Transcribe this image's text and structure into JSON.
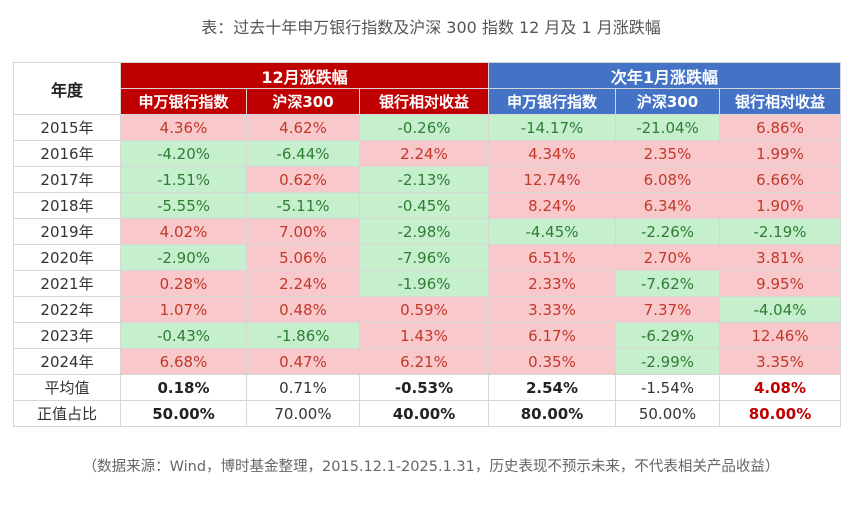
{
  "title": "表：过去十年申万银行指数及沪深 300 指数 12 月及 1 月涨跌幅",
  "table": {
    "corner": "年度",
    "groups": [
      "12月涨跌幅",
      "次年1月涨跌幅"
    ],
    "columns": [
      "申万银行指数",
      "沪深300",
      "银行相对收益",
      "申万银行指数",
      "沪深300",
      "银行相对收益"
    ],
    "rows": [
      {
        "year": "2015年",
        "cells": [
          {
            "v": "4.36%",
            "s": "pos"
          },
          {
            "v": "4.62%",
            "s": "pos"
          },
          {
            "v": "-0.26%",
            "s": "neg"
          },
          {
            "v": "-14.17%",
            "s": "neg"
          },
          {
            "v": "-21.04%",
            "s": "neg"
          },
          {
            "v": "6.86%",
            "s": "pos"
          }
        ]
      },
      {
        "year": "2016年",
        "cells": [
          {
            "v": "-4.20%",
            "s": "neg"
          },
          {
            "v": "-6.44%",
            "s": "neg"
          },
          {
            "v": "2.24%",
            "s": "pos"
          },
          {
            "v": "4.34%",
            "s": "pos"
          },
          {
            "v": "2.35%",
            "s": "pos"
          },
          {
            "v": "1.99%",
            "s": "pos"
          }
        ]
      },
      {
        "year": "2017年",
        "cells": [
          {
            "v": "-1.51%",
            "s": "neg"
          },
          {
            "v": "0.62%",
            "s": "pos"
          },
          {
            "v": "-2.13%",
            "s": "neg"
          },
          {
            "v": "12.74%",
            "s": "pos"
          },
          {
            "v": "6.08%",
            "s": "pos"
          },
          {
            "v": "6.66%",
            "s": "pos"
          }
        ]
      },
      {
        "year": "2018年",
        "cells": [
          {
            "v": "-5.55%",
            "s": "neg"
          },
          {
            "v": "-5.11%",
            "s": "neg"
          },
          {
            "v": "-0.45%",
            "s": "neg"
          },
          {
            "v": "8.24%",
            "s": "pos"
          },
          {
            "v": "6.34%",
            "s": "pos"
          },
          {
            "v": "1.90%",
            "s": "pos"
          }
        ]
      },
      {
        "year": "2019年",
        "cells": [
          {
            "v": "4.02%",
            "s": "pos"
          },
          {
            "v": "7.00%",
            "s": "pos"
          },
          {
            "v": "-2.98%",
            "s": "neg"
          },
          {
            "v": "-4.45%",
            "s": "neg"
          },
          {
            "v": "-2.26%",
            "s": "neg"
          },
          {
            "v": "-2.19%",
            "s": "neg"
          }
        ]
      },
      {
        "year": "2020年",
        "cells": [
          {
            "v": "-2.90%",
            "s": "neg"
          },
          {
            "v": "5.06%",
            "s": "pos"
          },
          {
            "v": "-7.96%",
            "s": "neg"
          },
          {
            "v": "6.51%",
            "s": "pos"
          },
          {
            "v": "2.70%",
            "s": "pos"
          },
          {
            "v": "3.81%",
            "s": "pos"
          }
        ]
      },
      {
        "year": "2021年",
        "cells": [
          {
            "v": "0.28%",
            "s": "pos"
          },
          {
            "v": "2.24%",
            "s": "pos"
          },
          {
            "v": "-1.96%",
            "s": "neg"
          },
          {
            "v": "2.33%",
            "s": "pos"
          },
          {
            "v": "-7.62%",
            "s": "neg"
          },
          {
            "v": "9.95%",
            "s": "pos"
          }
        ]
      },
      {
        "year": "2022年",
        "cells": [
          {
            "v": "1.07%",
            "s": "pos"
          },
          {
            "v": "0.48%",
            "s": "pos"
          },
          {
            "v": "0.59%",
            "s": "pos"
          },
          {
            "v": "3.33%",
            "s": "pos"
          },
          {
            "v": "7.37%",
            "s": "pos"
          },
          {
            "v": "-4.04%",
            "s": "neg"
          }
        ]
      },
      {
        "year": "2023年",
        "cells": [
          {
            "v": "-0.43%",
            "s": "neg"
          },
          {
            "v": "-1.86%",
            "s": "neg"
          },
          {
            "v": "1.43%",
            "s": "pos"
          },
          {
            "v": "6.17%",
            "s": "pos"
          },
          {
            "v": "-6.29%",
            "s": "neg"
          },
          {
            "v": "12.46%",
            "s": "pos"
          }
        ]
      },
      {
        "year": "2024年",
        "cells": [
          {
            "v": "6.68%",
            "s": "pos"
          },
          {
            "v": "0.47%",
            "s": "pos"
          },
          {
            "v": "6.21%",
            "s": "pos"
          },
          {
            "v": "0.35%",
            "s": "pos"
          },
          {
            "v": "-2.99%",
            "s": "neg"
          },
          {
            "v": "3.35%",
            "s": "pos"
          }
        ]
      }
    ],
    "summary": [
      {
        "label": "平均值",
        "cells": [
          {
            "v": "0.18%",
            "s": "bold"
          },
          {
            "v": "0.71%",
            "s": "plain"
          },
          {
            "v": "-0.53%",
            "s": "bold"
          },
          {
            "v": "2.54%",
            "s": "bold"
          },
          {
            "v": "-1.54%",
            "s": "plain"
          },
          {
            "v": "4.08%",
            "s": "redbold"
          }
        ]
      },
      {
        "label": "正值占比",
        "cells": [
          {
            "v": "50.00%",
            "s": "bold"
          },
          {
            "v": "70.00%",
            "s": "plain"
          },
          {
            "v": "40.00%",
            "s": "bold"
          },
          {
            "v": "80.00%",
            "s": "bold"
          },
          {
            "v": "50.00%",
            "s": "plain"
          },
          {
            "v": "80.00%",
            "s": "redbold"
          }
        ]
      }
    ]
  },
  "footnote": "（数据来源：Wind，博时基金整理，2015.12.1-2025.1.31，历史表现不预示未来，不代表相关产品收益）",
  "colors": {
    "group_a_header": "#c00000",
    "group_b_header": "#4472c4",
    "positive_fill": "#f9c8cb",
    "negative_fill": "#c6efce",
    "positive_text": "#c0392b",
    "negative_text": "#2e7d32"
  }
}
